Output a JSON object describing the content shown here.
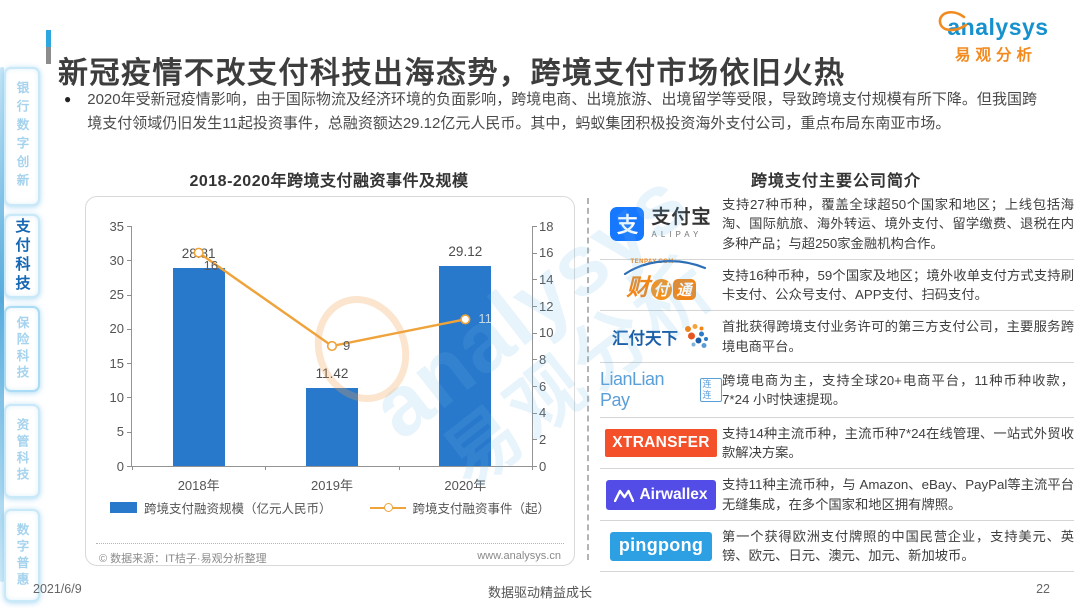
{
  "header": {
    "title": "新冠疫情不改支付科技出海态势，跨境支付市场依旧火热",
    "logo_brand": "analysys",
    "logo_brand_cn": "易观分析"
  },
  "sidebar": {
    "items": [
      {
        "label": "银行数字创新",
        "active": false
      },
      {
        "label": "支付科技",
        "active": true
      },
      {
        "label": "保险科技",
        "active": false
      },
      {
        "label": "资管科技",
        "active": false
      },
      {
        "label": "数字普惠",
        "active": false
      }
    ]
  },
  "intro": {
    "bullet": "●",
    "text": "2020年受新冠疫情影响，由于国际物流及经济环境的负面影响，跨境电商、出境旅游、出境留学等受限，导致跨境支付规模有所下降。但我国跨境支付领域仍旧发生11起投资事件，总融资额达29.12亿元人民币。其中，蚂蚁集团积极投资海外支付公司，重点布局东南亚市场。"
  },
  "chart_data": {
    "type": "bar+line",
    "title": "2018-2020年跨境支付融资事件及规模",
    "categories": [
      "2018年",
      "2019年",
      "2020年"
    ],
    "series": [
      {
        "name": "跨境支付融资规模（亿元人民币）",
        "type": "bar",
        "axis": "left",
        "values": [
          28.81,
          11.42,
          29.12
        ],
        "color": "#2878CC"
      },
      {
        "name": "跨境支付融资事件（起）",
        "type": "line",
        "axis": "right",
        "values": [
          16,
          9,
          11
        ],
        "color": "#EFA33B"
      }
    ],
    "value_labels": [
      "28.81",
      "11.42",
      "29.12"
    ],
    "event_labels": [
      {
        "text": "16",
        "light": false
      },
      {
        "text": "9",
        "light": false
      },
      {
        "text": "11",
        "light": true
      }
    ],
    "left_axis": {
      "min": 0,
      "max": 35,
      "ticks": [
        0,
        5,
        10,
        15,
        20,
        25,
        30,
        35
      ]
    },
    "right_axis": {
      "min": 0,
      "max": 18,
      "ticks": [
        0,
        2,
        4,
        6,
        8,
        10,
        12,
        14,
        16,
        18
      ]
    },
    "grid": false,
    "legend_position": "bottom",
    "source_left": "© 数据来源：IT桔子·易观分析整理",
    "source_right": "www.analysys.cn"
  },
  "companies": {
    "title": "跨境支付主要公司简介",
    "rows": [
      {
        "name": "支付宝",
        "logo": {
          "glyph": "支",
          "cn": "支付宝",
          "en": "ALIPAY"
        },
        "desc": "支持27种币种，覆盖全球超50个国家和地区；上线包括海淘、国际航旅、海外转运、境外支付、留学缴费、退税在内多种产品；与超250家金融机构合作。"
      },
      {
        "name": "财付通",
        "logo": {
          "top": "TENPAY.COM",
          "c1": "财",
          "c2": "付",
          "c3": "通"
        },
        "desc": "支持16种币种，59个国家及地区；境外收单支付方式支持刷卡支付、公众号支付、APP支付、扫码支付。"
      },
      {
        "name": "汇付天下",
        "logo": {
          "text": "汇付天下"
        },
        "desc": "首批获得跨境支付业务许可的第三方支付公司，主要服务跨境电商平台。"
      },
      {
        "name": "LianLian Pay",
        "logo": {
          "text": "LianLian Pay",
          "tag": "连连"
        },
        "desc": "跨境电商为主，支持全球20+电商平台，11种币种收款，7*24 小时快速提现。"
      },
      {
        "name": "XTRANSFER",
        "logo": {
          "text": "XTRANSFER"
        },
        "desc": "支持14种主流币种，主流币种7*24在线管理、一站式外贸收款解决方案。"
      },
      {
        "name": "Airwallex",
        "logo": {
          "text": "Airwallex"
        },
        "desc": "支持11种主流币种，与 Amazon、eBay、PayPal等主流平台无缝集成，在多个国家和地区拥有牌照。"
      },
      {
        "name": "pingpong",
        "logo": {
          "text": "pingpong"
        },
        "desc": "第一个获得欧洲支付牌照的中国民营企业，支持美元、英镑、欧元、日元、澳元、加元、新加坡币。"
      }
    ]
  },
  "watermark": {
    "line1": "analysys",
    "line2": "易观分析"
  },
  "footer": {
    "date": "2021/6/9",
    "slogan": "数据驱动精益成长",
    "page": "22"
  },
  "colors": {
    "bar_blue": "#2878CC",
    "line_orange": "#EFA33B",
    "accent_blue": "#2EA7E0",
    "brand_blue": "#1791CE",
    "brand_orange": "#F28A1E",
    "sidebar_active": "#1566B3"
  }
}
